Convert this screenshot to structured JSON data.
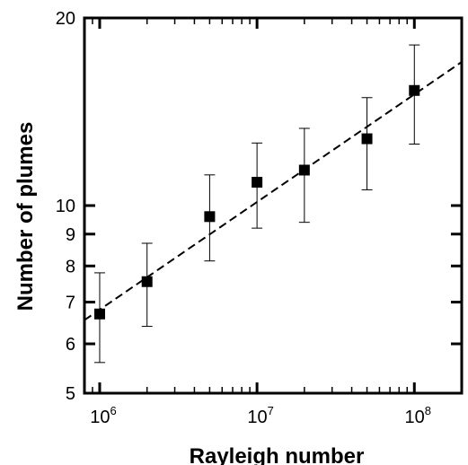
{
  "chart_data": {
    "type": "scatter",
    "title": "",
    "xlabel": "Rayleigh number",
    "ylabel": "Number of plumes",
    "xscale": "log",
    "yscale": "log",
    "xlim": [
      800000,
      200000000
    ],
    "ylim": [
      5,
      20
    ],
    "grid": false,
    "legend": "none",
    "x_ticks": [
      {
        "value": 1000000,
        "base": "10",
        "exp": "6"
      },
      {
        "value": 10000000,
        "base": "10",
        "exp": "7"
      },
      {
        "value": 100000000,
        "base": "10",
        "exp": "8"
      }
    ],
    "y_ticks": [
      {
        "value": 5,
        "label": "5"
      },
      {
        "value": 6,
        "label": "6"
      },
      {
        "value": 7,
        "label": "7"
      },
      {
        "value": 8,
        "label": "8"
      },
      {
        "value": 9,
        "label": "9"
      },
      {
        "value": 10,
        "label": "10"
      },
      {
        "value": 20,
        "label": "20"
      }
    ],
    "points": [
      {
        "x": 1000000,
        "y": 6.7,
        "err_low": 5.6,
        "err_high": 7.8
      },
      {
        "x": 2000000,
        "y": 7.55,
        "err_low": 6.4,
        "err_high": 8.7
      },
      {
        "x": 5000000,
        "y": 9.6,
        "err_low": 8.15,
        "err_high": 11.2
      },
      {
        "x": 10000000,
        "y": 10.9,
        "err_low": 9.2,
        "err_high": 12.6
      },
      {
        "x": 20000000,
        "y": 11.4,
        "err_low": 9.4,
        "err_high": 13.3
      },
      {
        "x": 50000000,
        "y": 12.8,
        "err_low": 10.6,
        "err_high": 14.9
      },
      {
        "x": 100000000,
        "y": 15.3,
        "err_low": 12.55,
        "err_high": 18.1
      }
    ],
    "fit_line": {
      "style": "dashed",
      "x": [
        800000,
        200000000
      ],
      "y": [
        6.55,
        17.0
      ]
    },
    "marker_color": "#000000"
  }
}
